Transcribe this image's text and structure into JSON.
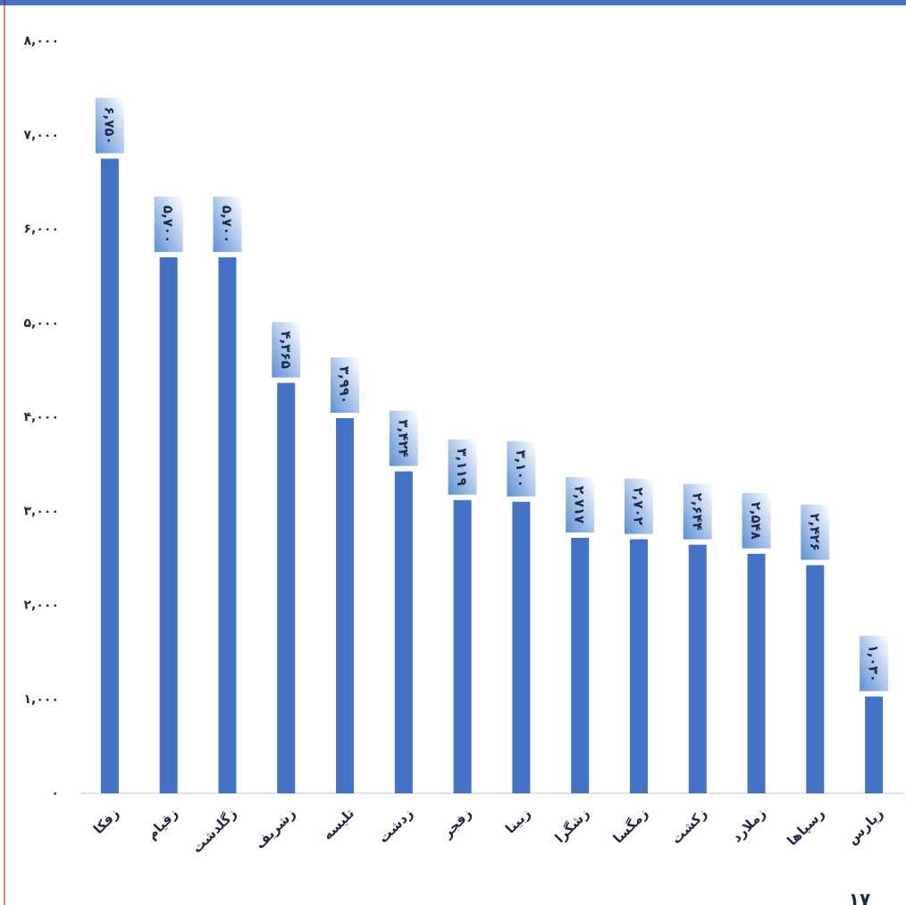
{
  "chart_data": {
    "type": "bar",
    "categories": [
      "زفکا",
      "زقیام",
      "زگلدشت",
      "زشریف",
      "تلیسه",
      "زدشت",
      "زفجر",
      "زبینا",
      "زشگرا",
      "زمگسا",
      "زکشت",
      "زملارد",
      "رسپاها",
      "زپارس"
    ],
    "values": [
      6750,
      5700,
      5700,
      4365,
      3990,
      3424,
      3119,
      3100,
      2717,
      2702,
      2644,
      2548,
      2426,
      1030
    ],
    "value_labels": [
      "۶,۷۵۰",
      "۵,۷۰۰",
      "۵,۷۰۰",
      "۴,۳۶۵",
      "۳,۹۹۰",
      "۳,۴۲۴",
      "۳,۱۱۹",
      "۳,۱۰۰",
      "۲,۷۱۷",
      "۲,۷۰۲",
      "۲,۶۴۴",
      "۲,۵۴۸",
      "۲,۴۲۶",
      "۱,۰۳۰"
    ],
    "color": "#4472c4",
    "ylim": [
      0,
      8000
    ],
    "yticks": [
      {
        "value": 0,
        "label": "۰"
      },
      {
        "value": 1000,
        "label": "۱,۰۰۰"
      },
      {
        "value": 2000,
        "label": "۲,۰۰۰"
      },
      {
        "value": 3000,
        "label": "۳,۰۰۰"
      },
      {
        "value": 4000,
        "label": "۴,۰۰۰"
      },
      {
        "value": 5000,
        "label": "۵,۰۰۰"
      },
      {
        "value": 6000,
        "label": "۶,۰۰۰"
      },
      {
        "value": 7000,
        "label": "۷,۰۰۰"
      },
      {
        "value": 8000,
        "label": "۸,۰۰۰"
      }
    ],
    "grid": false,
    "page_number": "۱۷"
  }
}
